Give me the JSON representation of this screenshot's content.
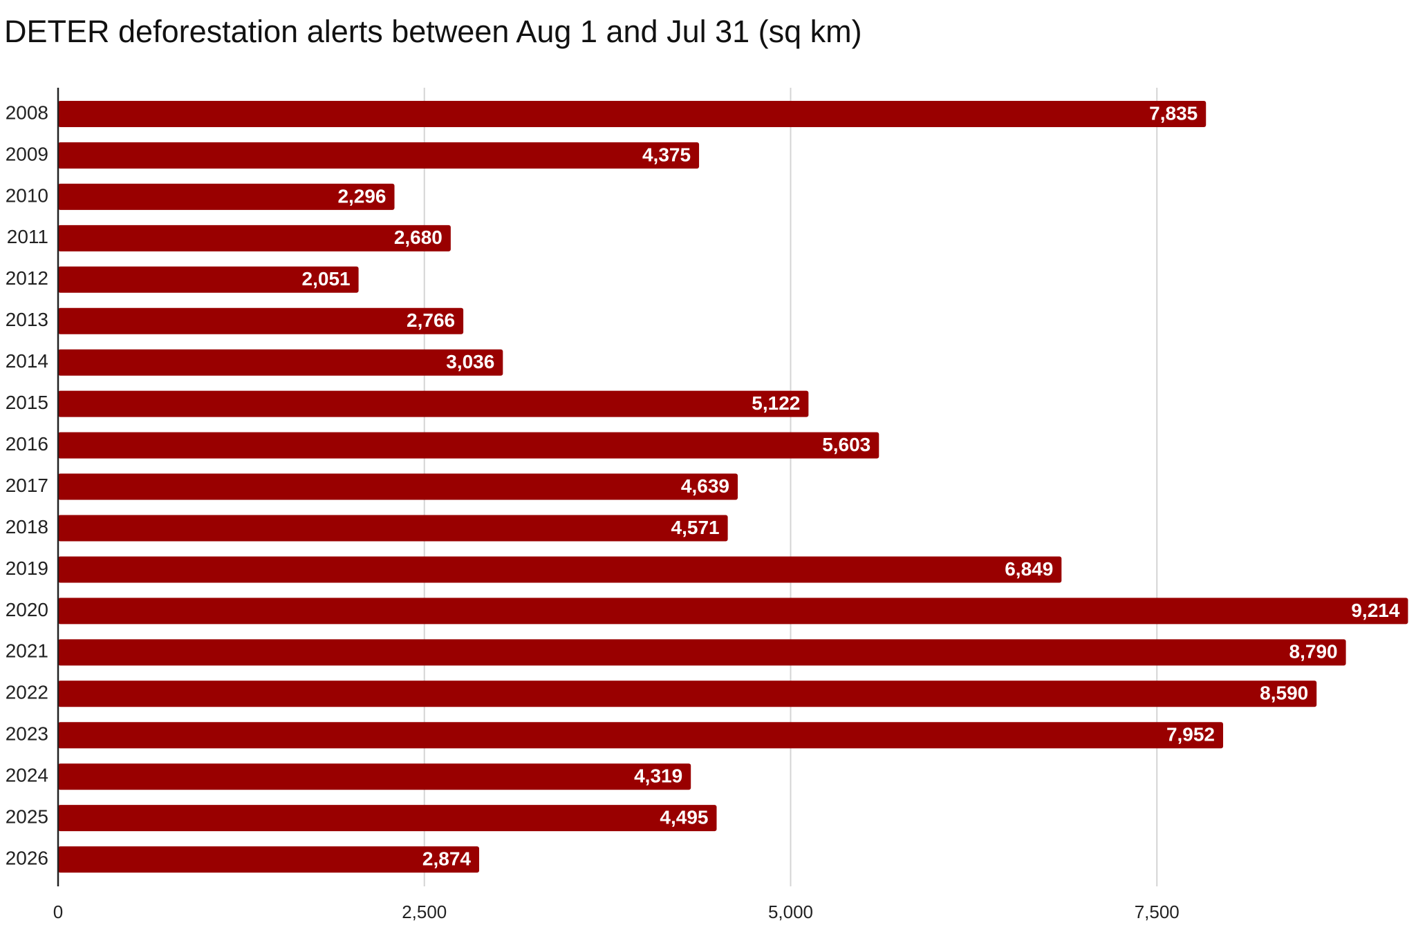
{
  "chart_data": {
    "type": "bar",
    "orientation": "horizontal",
    "title": "DETER deforestation alerts between Aug 1 and Jul 31 (sq km)",
    "xlabel": "",
    "ylabel": "",
    "categories": [
      "2008",
      "2009",
      "2010",
      "2011",
      "2012",
      "2013",
      "2014",
      "2015",
      "2016",
      "2017",
      "2018",
      "2019",
      "2020",
      "2021",
      "2022",
      "2023",
      "2024",
      "2025",
      "2026"
    ],
    "values": [
      7835,
      4375,
      2296,
      2680,
      2051,
      2766,
      3036,
      5122,
      5603,
      4639,
      4571,
      6849,
      9214,
      8790,
      8590,
      7952,
      4319,
      4495,
      2874
    ],
    "value_labels": [
      "7,835",
      "4,375",
      "2,296",
      "2,680",
      "2,051",
      "2,766",
      "3,036",
      "5,122",
      "5,603",
      "4,639",
      "4,571",
      "6,849",
      "9,214",
      "8,790",
      "8,590",
      "7,952",
      "4,319",
      "4,495",
      "2,874"
    ],
    "xlim": [
      0,
      9214
    ],
    "x_ticks": [
      0,
      2500,
      5000,
      7500
    ],
    "x_tick_labels": [
      "0",
      "2,500",
      "5,000",
      "7,500"
    ],
    "grid": true,
    "legend": "none",
    "colors": {
      "bar": "#990000",
      "gridline": "#d4d4d4",
      "axis": "#222222",
      "value_text": "#ffffff"
    }
  }
}
